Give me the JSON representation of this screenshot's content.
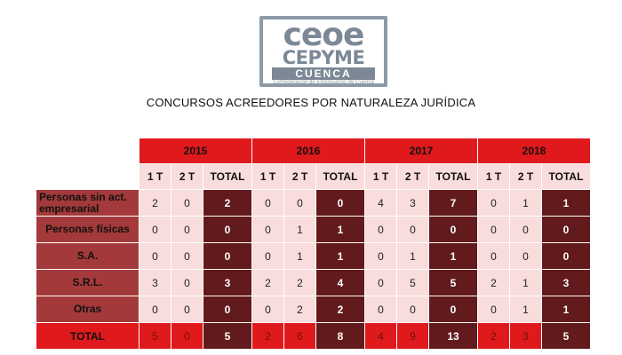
{
  "logo": {
    "line1": "ceoe",
    "line2": "CEPYME",
    "line3": "CUENCA",
    "tagline": "Confederación de Empresarios de Cuenca"
  },
  "title": "CONCURSOS ACREEDORES POR NATURALEZA JURÍDICA",
  "table": {
    "years": [
      "2015",
      "2016",
      "2017",
      "2018"
    ],
    "quarter_headers": [
      "1 T",
      "2 T",
      "TOTAL"
    ],
    "rows": [
      {
        "label": "Personas sin act. empresarial",
        "values": [
          [
            "2",
            "0",
            "2"
          ],
          [
            "0",
            "0",
            "0"
          ],
          [
            "4",
            "3",
            "7"
          ],
          [
            "0",
            "1",
            "1"
          ]
        ]
      },
      {
        "label": "Personas físicas",
        "values": [
          [
            "0",
            "0",
            "0"
          ],
          [
            "0",
            "1",
            "1"
          ],
          [
            "0",
            "0",
            "0"
          ],
          [
            "0",
            "0",
            "0"
          ]
        ]
      },
      {
        "label": "S.A.",
        "values": [
          [
            "0",
            "0",
            "0"
          ],
          [
            "0",
            "1",
            "1"
          ],
          [
            "0",
            "1",
            "1"
          ],
          [
            "0",
            "0",
            "0"
          ]
        ]
      },
      {
        "label": "S.R.L.",
        "values": [
          [
            "3",
            "0",
            "3"
          ],
          [
            "2",
            "2",
            "4"
          ],
          [
            "0",
            "5",
            "5"
          ],
          [
            "2",
            "1",
            "3"
          ]
        ]
      },
      {
        "label": "Otras",
        "values": [
          [
            "0",
            "0",
            "0"
          ],
          [
            "0",
            "2",
            "2"
          ],
          [
            "0",
            "0",
            "0"
          ],
          [
            "0",
            "1",
            "1"
          ]
        ]
      }
    ],
    "total_row": {
      "label": "TOTAL",
      "values": [
        [
          "5",
          "0",
          "5"
        ],
        [
          "2",
          "6",
          "8"
        ],
        [
          "4",
          "9",
          "13"
        ],
        [
          "2",
          "3",
          "5"
        ]
      ]
    }
  },
  "colors": {
    "header_red": "#e0191c",
    "light_pink": "#f9dcdc",
    "label_brick": "#a3393a",
    "total_dark": "#621a1c",
    "logo_gray": "#7c8895"
  }
}
